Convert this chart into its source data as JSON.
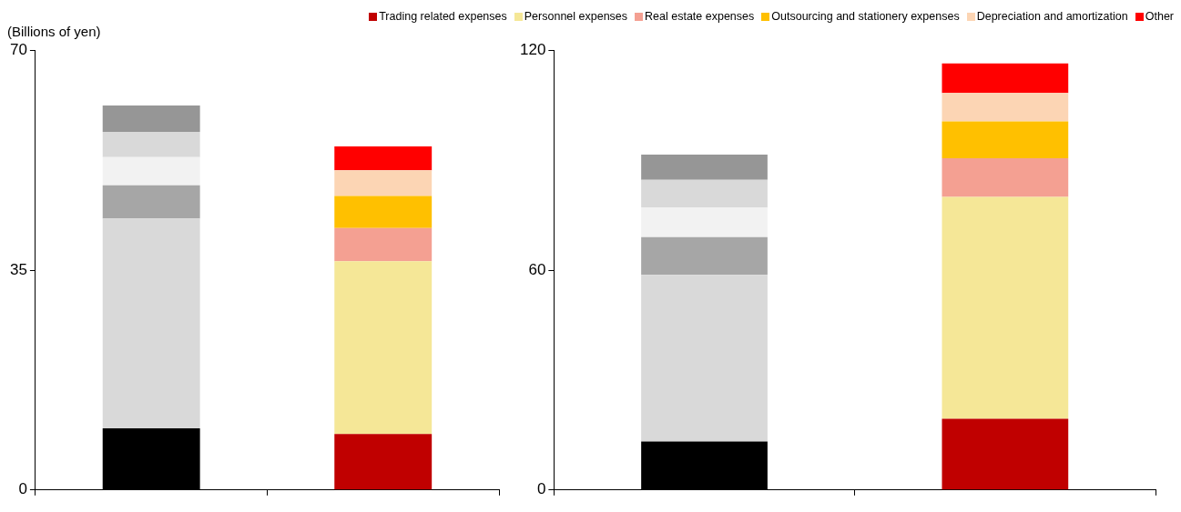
{
  "chart_data": [
    {
      "type": "bar",
      "stacked": true,
      "ylabel": "(Billions of yen)",
      "categories": [
        null,
        null
      ],
      "ylim": [
        0,
        70
      ],
      "yticks": [
        0,
        35,
        70
      ],
      "grid": false,
      "legend": "top",
      "tick_labels": "y",
      "series": [
        {
          "name": "Trading related expenses",
          "color": "#c00000",
          "colors": [
            "#000000",
            "#c00000"
          ],
          "values": [
            9.8,
            8.9
          ]
        },
        {
          "name": "Personnel expenses",
          "color": "#f5e797",
          "colors": [
            "#d9d9d9",
            "#f5e797"
          ],
          "values": [
            33.4,
            27.5
          ]
        },
        {
          "name": "Real estate expenses",
          "color": "#f4a092",
          "colors": [
            "#a6a6a6",
            "#f4a092"
          ],
          "values": [
            5.3,
            5.3
          ]
        },
        {
          "name": "Outsourcing and stationery expenses",
          "color": "#ffc000",
          "colors": [
            "#f2f2f2",
            "#ffc000"
          ],
          "values": [
            4.5,
            5.1
          ]
        },
        {
          "name": "Depreciation and amortization",
          "color": "#fcd5b4",
          "colors": [
            "#d9d9d9",
            "#fcd5b4"
          ],
          "values": [
            4.0,
            4.1
          ]
        },
        {
          "name": "Other",
          "color": "#ff0000",
          "colors": [
            "#969696",
            "#ff0000"
          ],
          "values": [
            4.2,
            3.8
          ]
        }
      ]
    },
    {
      "type": "bar",
      "stacked": true,
      "categories": [
        null,
        null
      ],
      "ylim": [
        0,
        120
      ],
      "yticks": [
        0,
        60,
        120
      ],
      "grid": false,
      "tick_labels": "y",
      "series": [
        {
          "colors": [
            "#000000",
            "#c00000"
          ],
          "values": [
            13.2,
            19.4
          ]
        },
        {
          "colors": [
            "#d9d9d9",
            "#f5e797"
          ],
          "values": [
            45.5,
            60.6
          ]
        },
        {
          "colors": [
            "#a6a6a6",
            "#f4a092"
          ],
          "values": [
            10.3,
            10.5
          ]
        },
        {
          "colors": [
            "#f2f2f2",
            "#ffc000"
          ],
          "values": [
            8.1,
            10.1
          ]
        },
        {
          "colors": [
            "#d9d9d9",
            "#fcd5b4"
          ],
          "values": [
            7.5,
            7.7
          ]
        },
        {
          "colors": [
            "#969696",
            "#ff0000"
          ],
          "values": [
            6.9,
            8.1
          ]
        }
      ]
    }
  ]
}
